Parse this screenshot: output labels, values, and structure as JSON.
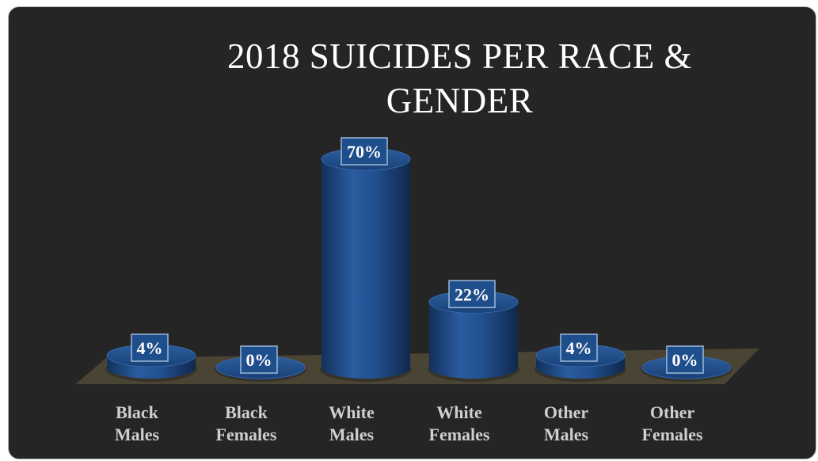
{
  "chart_data": {
    "type": "bar",
    "title_lines": [
      "2018 SUICIDES PER RACE &",
      "GENDER"
    ],
    "categories": [
      [
        "Black",
        "Males"
      ],
      [
        "Black",
        "Females"
      ],
      [
        "White",
        "Males"
      ],
      [
        "White",
        "Females"
      ],
      [
        "Other",
        "Males"
      ],
      [
        "Other",
        "Females"
      ]
    ],
    "values": [
      4,
      0,
      70,
      22,
      4,
      0
    ],
    "data_labels": [
      "4%",
      "0%",
      "70%",
      "22%",
      "4%",
      "0%"
    ],
    "ylim": [
      0,
      70
    ],
    "grid": false,
    "legend": "none",
    "style": "3d-cylinder"
  },
  "colors": {
    "background": "#252525",
    "bar": "#1f4e8c",
    "floor": "#4a4434",
    "label_box": "#1f4e8c",
    "label_border": "#9fb7d9",
    "text": "#ffffff",
    "category_text": "#cfcfcf"
  }
}
